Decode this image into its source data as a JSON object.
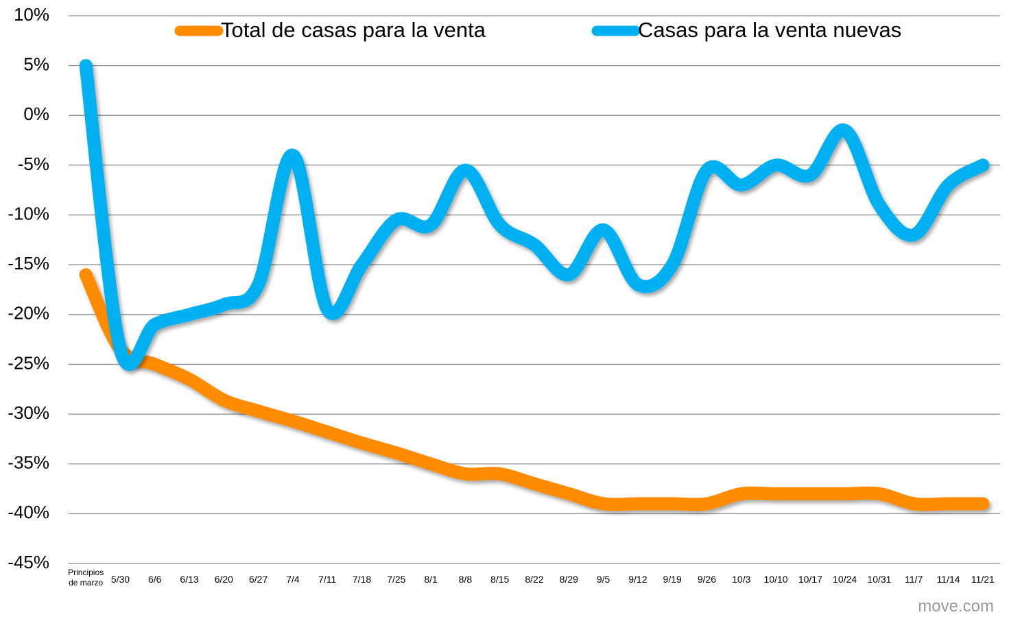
{
  "chart_data": {
    "type": "line",
    "categories": [
      "Principios de marzo",
      "5/30",
      "6/6",
      "6/13",
      "6/20",
      "6/27",
      "7/4",
      "7/11",
      "7/18",
      "7/25",
      "8/1",
      "8/8",
      "8/15",
      "8/22",
      "8/29",
      "9/5",
      "9/12",
      "9/19",
      "9/26",
      "10/3",
      "10/10",
      "10/17",
      "10/24",
      "10/31",
      "11/7",
      "11/14",
      "11/21"
    ],
    "series": [
      {
        "name": "Total de casas para la venta",
        "color": "#ff8c00",
        "values": [
          -16,
          -23.5,
          -25,
          -26.5,
          -28.6,
          -29.7,
          -30.7,
          -31.8,
          -32.9,
          -33.9,
          -35,
          -36,
          -36,
          -37,
          -38,
          -39,
          -39,
          -39,
          -39,
          -38,
          -38,
          -38,
          -38,
          -38,
          -39,
          -39,
          -39
        ]
      },
      {
        "name": "Casas para la venta nuevas",
        "color": "#00b0f0",
        "values": [
          5,
          -23.5,
          -21,
          -20,
          -19,
          -17,
          -4,
          -19.5,
          -15,
          -10.5,
          -11,
          -5.5,
          -11,
          -13,
          -16,
          -11.5,
          -17,
          -15,
          -5.5,
          -7,
          -5,
          -6,
          -1.5,
          -9,
          -12,
          -7,
          -5
        ]
      }
    ],
    "ylim": [
      -45,
      10
    ],
    "yticks": [
      {
        "value": 10,
        "label": "10%"
      },
      {
        "value": 5,
        "label": "5%"
      },
      {
        "value": 0,
        "label": "0%"
      },
      {
        "value": -5,
        "label": "-5%"
      },
      {
        "value": -10,
        "label": "-10%"
      },
      {
        "value": -15,
        "label": "-15%"
      },
      {
        "value": -20,
        "label": "-20%"
      },
      {
        "value": -25,
        "label": "-25%"
      },
      {
        "value": -30,
        "label": "-30%"
      },
      {
        "value": -35,
        "label": "-35%"
      },
      {
        "value": -40,
        "label": "-40%"
      },
      {
        "value": -45,
        "label": "-45%"
      }
    ],
    "grid": true,
    "legend": "top",
    "source": "move.com"
  }
}
